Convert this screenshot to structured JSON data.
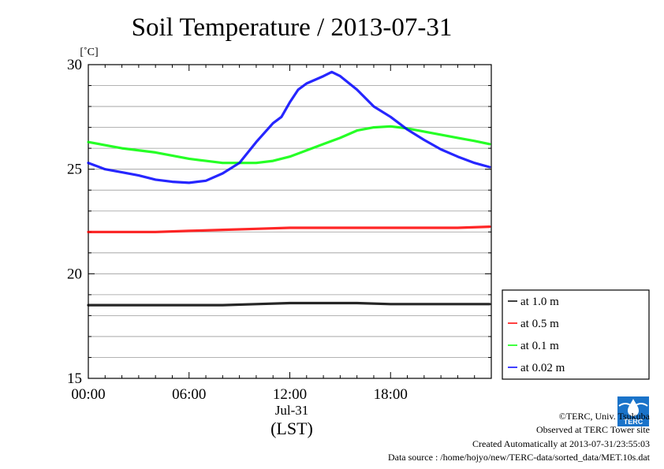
{
  "chart_data": {
    "type": "line",
    "title": "Soil Temperature / 2013-07-31",
    "ylabel": "[˚C]",
    "xlabel_date": "Jul-31",
    "xlabel": "(LST)",
    "ylim": [
      15,
      30
    ],
    "xlim": [
      0,
      24
    ],
    "yticks": [
      {
        "value": 15,
        "label": "15"
      },
      {
        "value": 20,
        "label": "20"
      },
      {
        "value": 25,
        "label": "25"
      },
      {
        "value": 30,
        "label": "30"
      }
    ],
    "xticks": [
      {
        "value": 0,
        "label": "00:00"
      },
      {
        "value": 6,
        "label": "06:00"
      },
      {
        "value": 12,
        "label": "12:00"
      },
      {
        "value": 18,
        "label": "18:00"
      }
    ],
    "grid": true,
    "legend_position": "right, outside plot",
    "series": [
      {
        "name": "at 1.0 m",
        "color": "#000000",
        "x": [
          0,
          2,
          4,
          6,
          8,
          10,
          12,
          14,
          16,
          18,
          20,
          22,
          23.9
        ],
        "y": [
          18.5,
          18.5,
          18.5,
          18.5,
          18.5,
          18.55,
          18.6,
          18.6,
          18.6,
          18.55,
          18.55,
          18.55,
          18.55
        ]
      },
      {
        "name": "at 0.5 m",
        "color": "#ff0000",
        "x": [
          0,
          2,
          4,
          6,
          8,
          10,
          12,
          14,
          16,
          18,
          20,
          22,
          23.9
        ],
        "y": [
          22.0,
          22.0,
          22.0,
          22.05,
          22.1,
          22.15,
          22.2,
          22.2,
          22.2,
          22.2,
          22.2,
          22.2,
          22.25
        ]
      },
      {
        "name": "at 0.1 m",
        "color": "#00ff00",
        "x": [
          0,
          2,
          4,
          6,
          7,
          8,
          9,
          10,
          11,
          12,
          13,
          14,
          15,
          16,
          17,
          18,
          19,
          20,
          21,
          22,
          23,
          23.9
        ],
        "y": [
          26.3,
          26.0,
          25.8,
          25.5,
          25.4,
          25.3,
          25.3,
          25.3,
          25.4,
          25.6,
          25.9,
          26.2,
          26.5,
          26.85,
          27.0,
          27.05,
          26.95,
          26.8,
          26.65,
          26.5,
          26.35,
          26.2
        ]
      },
      {
        "name": "at 0.02 m",
        "color": "#0000ff",
        "x": [
          0,
          1,
          2,
          3,
          4,
          5,
          6,
          7,
          8,
          9,
          10,
          11,
          11.5,
          12,
          12.5,
          13,
          14,
          14.5,
          15,
          16,
          17,
          18,
          19,
          20,
          21,
          22,
          23,
          23.9
        ],
        "y": [
          25.3,
          25.0,
          24.85,
          24.7,
          24.5,
          24.4,
          24.35,
          24.45,
          24.8,
          25.3,
          26.3,
          27.2,
          27.5,
          28.2,
          28.8,
          29.1,
          29.45,
          29.65,
          29.45,
          28.8,
          28.0,
          27.5,
          26.9,
          26.4,
          25.95,
          25.6,
          25.3,
          25.1
        ]
      }
    ]
  },
  "footer": {
    "copyright": "©TERC, Univ. Tsukuba",
    "observed": "Observed at TERC Tower site",
    "created": "Created Automatically at 2013-07-31/23:55:03",
    "source": "Data source : /home/hojyo/new/TERC-data/sorted_data/MET.10s.dat",
    "logo_text": "TERC"
  }
}
